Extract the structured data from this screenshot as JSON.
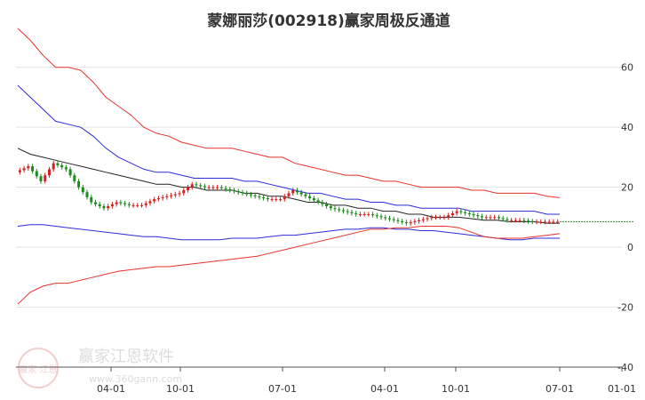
{
  "chart_data": {
    "type": "line",
    "title": "蒙娜丽莎(002918)赢家周极反通道",
    "ylim": [
      -40,
      70
    ],
    "y_ticks": [
      60,
      40,
      20,
      0,
      -20,
      -40
    ],
    "x_ticks": [
      "04-01",
      "10-01",
      "07-01",
      "04-01",
      "10-01",
      "07-01",
      "01-01"
    ],
    "x": [
      "2020-12",
      "2021-01",
      "2021-02",
      "2021-03",
      "2021-04",
      "2021-05",
      "2021-06",
      "2021-07",
      "2021-08",
      "2021-09",
      "2021-10",
      "2021-11",
      "2021-12",
      "2022-01",
      "2022-02",
      "2022-03",
      "2022-04",
      "2022-05",
      "2022-06",
      "2022-07",
      "2022-08",
      "2022-09",
      "2022-10",
      "2022-11",
      "2022-12",
      "2023-01",
      "2023-02",
      "2023-03",
      "2023-04",
      "2023-05",
      "2023-06",
      "2023-07",
      "2023-08",
      "2023-09",
      "2023-10",
      "2023-11",
      "2023-12",
      "2024-01",
      "2024-02",
      "2024-03",
      "2024-04",
      "2024-05",
      "2024-06",
      "2024-07"
    ],
    "series": [
      {
        "color": "#e8312a",
        "values": [
          73,
          69,
          64,
          60,
          60,
          59,
          55,
          50,
          47,
          44,
          40,
          38,
          37,
          35,
          34,
          33,
          33,
          33,
          32,
          31,
          30,
          30,
          28,
          27,
          26,
          25,
          24,
          24,
          23,
          22,
          22,
          21,
          20,
          20,
          20,
          20,
          19,
          19,
          18,
          18,
          18,
          18,
          17,
          16.5
        ]
      },
      {
        "color": "#2b2bd8",
        "values": [
          54,
          50,
          46,
          42,
          41,
          40,
          37,
          33,
          30,
          28,
          26,
          25,
          25,
          24,
          23,
          23,
          23,
          23,
          22,
          22,
          21,
          20,
          19,
          18,
          18,
          17,
          16,
          16,
          15,
          15,
          14,
          14,
          13,
          13,
          13,
          13,
          12,
          12,
          12,
          12,
          12,
          12,
          11,
          11
        ]
      },
      {
        "color": "#222222",
        "values": [
          33,
          31,
          30,
          29,
          28,
          27,
          26,
          25,
          24,
          23,
          22,
          21,
          21,
          20,
          20,
          19,
          19,
          19,
          18,
          18,
          17,
          17,
          16,
          15,
          15,
          14,
          14,
          13,
          13,
          12,
          12,
          11,
          11,
          10,
          10,
          10,
          9.5,
          9,
          9,
          8.5,
          8.5,
          8.5,
          8,
          8
        ]
      },
      {
        "color": "#2b2bd8",
        "values": [
          7,
          7.5,
          7.5,
          7,
          6.5,
          6,
          5.5,
          5,
          4.5,
          4,
          3.5,
          3.5,
          3,
          2.5,
          2.5,
          2.5,
          2.5,
          3,
          3,
          3,
          3.5,
          4,
          4,
          4.5,
          5,
          5.5,
          6,
          6,
          6.5,
          6.5,
          6,
          6,
          5.5,
          5.5,
          5,
          4.5,
          4,
          3.5,
          3,
          2.5,
          2.5,
          3,
          3,
          3
        ]
      },
      {
        "color": "#e8312a",
        "values": [
          -19,
          -15,
          -13,
          -12,
          -12,
          -11,
          -10,
          -9,
          -8,
          -7.5,
          -7,
          -6.5,
          -6.5,
          -6,
          -5.5,
          -5,
          -4.5,
          -4,
          -3.5,
          -3,
          -2,
          -1,
          0,
          1,
          2,
          3,
          4,
          5,
          6,
          6,
          6.5,
          6.5,
          7,
          7,
          7,
          6.5,
          5,
          3.5,
          3,
          3,
          3,
          3.5,
          4,
          4.5
        ]
      }
    ],
    "price": [
      25,
      27,
      22,
      28,
      26,
      20,
      15,
      13,
      15,
      14,
      14,
      16,
      17,
      18,
      21,
      20,
      20,
      19,
      18,
      17,
      16,
      16,
      19,
      17,
      15,
      13,
      12,
      11,
      11,
      10,
      9,
      8,
      9,
      10,
      10,
      12,
      11,
      10,
      10,
      9,
      9,
      8.5,
      8.5,
      8.5
    ],
    "projection": {
      "color": "#2e8b2e",
      "value": 8.5
    },
    "watermark": {
      "cn": "赢家江恩软件",
      "url": "www.360gann.com",
      "seal": "赢家 江恩"
    }
  }
}
